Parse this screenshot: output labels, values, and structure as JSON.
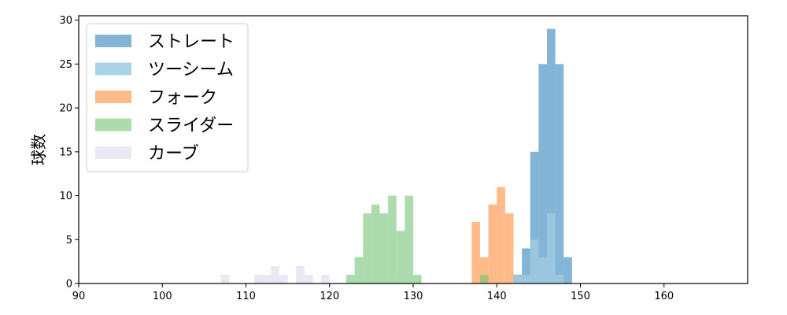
{
  "chart_data": {
    "type": "histogram",
    "ylabel": "球数",
    "xlim": [
      90,
      170
    ],
    "ylim": [
      0,
      30.5
    ],
    "xticks": [
      90,
      100,
      110,
      120,
      130,
      140,
      150,
      160
    ],
    "yticks": [
      0,
      5,
      10,
      15,
      20,
      25,
      30
    ],
    "bin_width": 1,
    "grid": false,
    "legend_position": "top-left",
    "series": [
      {
        "name": "ストレート",
        "color": "#1f77b4",
        "opacity": 0.55,
        "bins": [
          [
            142,
            1
          ],
          [
            143,
            4
          ],
          [
            144,
            15
          ],
          [
            145,
            25
          ],
          [
            146,
            29
          ],
          [
            147,
            25
          ],
          [
            148,
            3
          ]
        ]
      },
      {
        "name": "ツーシーム",
        "color": "#9ecae1",
        "opacity": 0.85,
        "bins": [
          [
            142,
            1
          ],
          [
            143,
            1
          ],
          [
            144,
            5
          ],
          [
            145,
            3
          ],
          [
            146,
            8
          ],
          [
            147,
            1
          ]
        ]
      },
      {
        "name": "フォーク",
        "color": "#fd8d3c",
        "opacity": 0.6,
        "bins": [
          [
            137,
            7
          ],
          [
            138,
            3
          ],
          [
            139,
            9
          ],
          [
            140,
            11
          ],
          [
            141,
            8
          ]
        ]
      },
      {
        "name": "スライダー",
        "color": "#74c476",
        "opacity": 0.6,
        "bins": [
          [
            122,
            1
          ],
          [
            123,
            3
          ],
          [
            124,
            8
          ],
          [
            125,
            9
          ],
          [
            126,
            8
          ],
          [
            127,
            10
          ],
          [
            128,
            6
          ],
          [
            129,
            10
          ],
          [
            130,
            1
          ],
          [
            138,
            1
          ]
        ]
      },
      {
        "name": "カーブ",
        "color": "#dadaeb",
        "opacity": 0.6,
        "bins": [
          [
            107,
            1
          ],
          [
            111,
            1
          ],
          [
            112,
            1
          ],
          [
            113,
            2
          ],
          [
            114,
            1
          ],
          [
            116,
            2
          ],
          [
            117,
            1
          ],
          [
            119,
            1
          ]
        ]
      }
    ]
  }
}
